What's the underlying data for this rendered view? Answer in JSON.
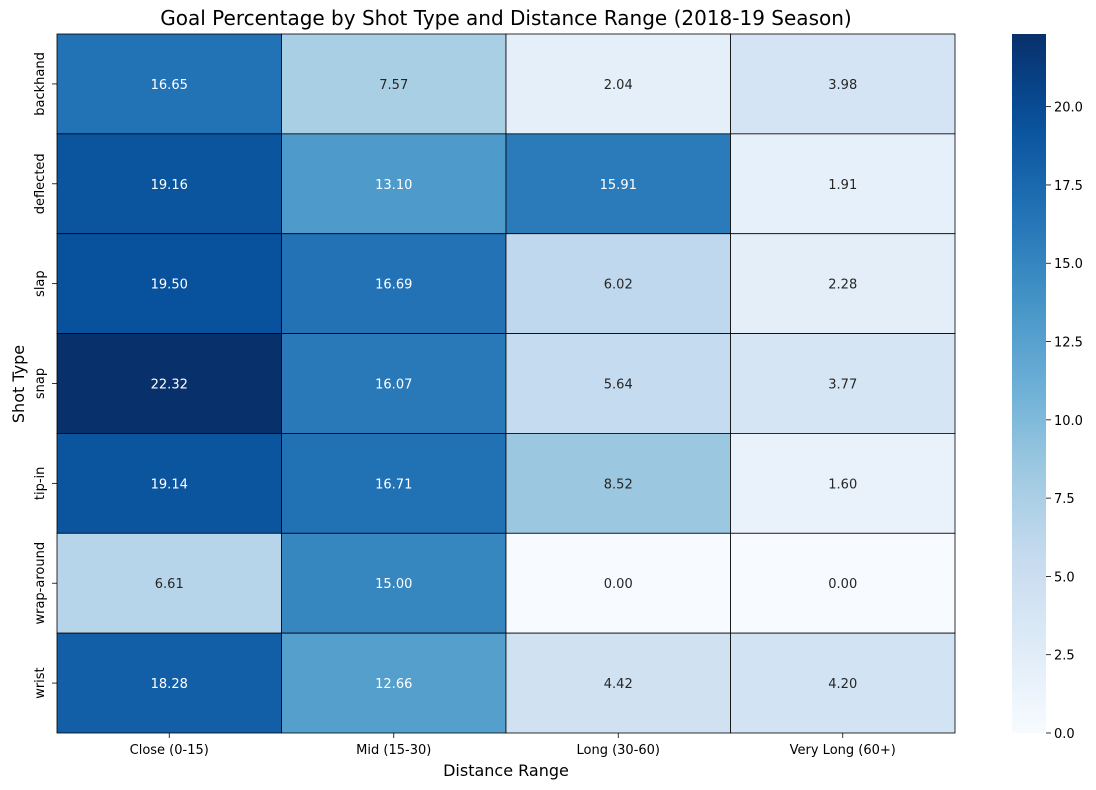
{
  "chart_data": {
    "type": "heatmap",
    "title": "Goal Percentage by Shot Type and Distance Range (2018-19 Season)",
    "xlabel": "Distance Range",
    "ylabel": "Shot Type",
    "x_categories": [
      "Close (0-15)",
      "Mid (15-30)",
      "Long (30-60)",
      "Very Long (60+)"
    ],
    "y_categories": [
      "backhand",
      "deflected",
      "slap",
      "snap",
      "tip-in",
      "wrap-around",
      "wrist"
    ],
    "values": [
      [
        16.65,
        7.57,
        2.04,
        3.98
      ],
      [
        19.16,
        13.1,
        15.91,
        1.91
      ],
      [
        19.5,
        16.69,
        6.02,
        2.28
      ],
      [
        22.32,
        16.07,
        5.64,
        3.77
      ],
      [
        19.14,
        16.71,
        8.52,
        1.6
      ],
      [
        6.61,
        15.0,
        0.0,
        0.0
      ],
      [
        18.28,
        12.66,
        4.42,
        4.2
      ]
    ],
    "value_format": "2 decimals",
    "colormap": "Blues",
    "color_range": [
      0,
      22.32
    ],
    "colorbar_ticks": [
      "0.0",
      "2.5",
      "5.0",
      "7.5",
      "10.0",
      "12.5",
      "15.0",
      "17.5",
      "20.0"
    ],
    "colorbar_tick_values": [
      0,
      2.5,
      5.0,
      7.5,
      10.0,
      12.5,
      15.0,
      17.5,
      20.0
    ],
    "cell_border_color": "#000000",
    "annotation_colors": {
      "light_cell_text": "#262626",
      "dark_cell_text": "#ffffff"
    }
  }
}
